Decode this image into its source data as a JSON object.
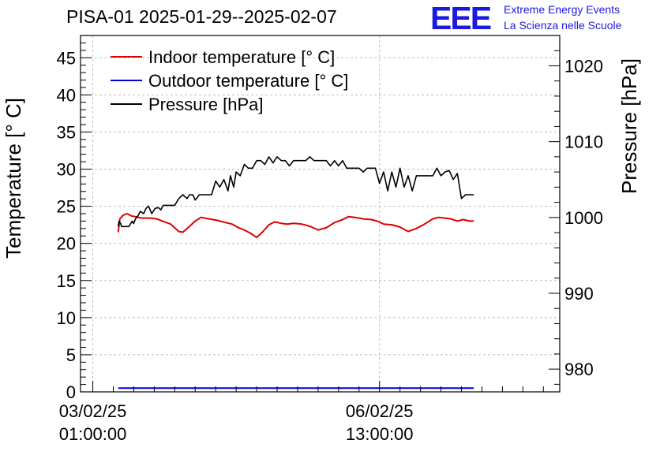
{
  "chart_data": {
    "type": "line",
    "title": "PISA-01 2025-01-29--2025-02-07",
    "ylabel": "Temperature [° C]",
    "y2label": "Pressure [hPa]",
    "ylim": [
      0,
      48
    ],
    "y2lim": [
      977,
      1024
    ],
    "xlim": [
      -0.15,
      5.7
    ],
    "x_ticks": [
      {
        "x": 0,
        "label": [
          "03/02/25",
          "01:00:00"
        ]
      },
      {
        "x": 3.5,
        "label": [
          "06/02/25",
          "13:00:00"
        ]
      }
    ],
    "y_ticks": [
      0,
      5,
      10,
      15,
      20,
      25,
      30,
      35,
      40,
      45
    ],
    "y2_ticks": [
      980,
      990,
      1000,
      1010,
      1020
    ],
    "grid": true,
    "legend": "top-left",
    "series": [
      {
        "name": "Indoor temperature [° C]",
        "color": "#dd0000",
        "axis": "left",
        "x": [
          0.31,
          0.33,
          0.37,
          0.42,
          0.47,
          0.52,
          0.6,
          0.7,
          0.78,
          0.85,
          0.95,
          1.05,
          1.1,
          1.17,
          1.25,
          1.32,
          1.42,
          1.52,
          1.62,
          1.7,
          1.78,
          1.85,
          1.92,
          2.0,
          2.07,
          2.15,
          2.22,
          2.3,
          2.37,
          2.45,
          2.55,
          2.65,
          2.75,
          2.85,
          2.95,
          3.05,
          3.12,
          3.2,
          3.3,
          3.4,
          3.47,
          3.55,
          3.65,
          3.75,
          3.85,
          3.95,
          4.05,
          4.15,
          4.22,
          4.3,
          4.37,
          4.45,
          4.52,
          4.6,
          4.65
        ],
        "y": [
          21.5,
          23.3,
          23.8,
          24.0,
          23.7,
          23.6,
          23.4,
          23.4,
          23.3,
          23.0,
          22.6,
          21.6,
          21.5,
          22.2,
          23.0,
          23.5,
          23.3,
          23.1,
          22.8,
          22.6,
          22.1,
          21.8,
          21.4,
          20.8,
          21.5,
          22.5,
          22.9,
          22.7,
          22.6,
          22.7,
          22.6,
          22.3,
          21.8,
          22.1,
          22.8,
          23.2,
          23.6,
          23.5,
          23.3,
          23.2,
          23.0,
          22.6,
          22.5,
          22.2,
          21.6,
          22.0,
          22.6,
          23.3,
          23.5,
          23.4,
          23.3,
          23.0,
          23.2,
          23.0,
          23.0
        ]
      },
      {
        "name": "Outdoor temperature [° C]",
        "color": "#0000dd",
        "axis": "left",
        "x": [
          0.31,
          4.65
        ],
        "y": [
          0.5,
          0.5
        ]
      },
      {
        "name": "Pressure [hPa]",
        "color": "#000000",
        "axis": "right",
        "x": [
          0.31,
          0.32,
          0.34,
          0.35,
          0.44,
          0.48,
          0.5,
          0.52,
          0.55,
          0.58,
          0.62,
          0.65,
          0.68,
          0.72,
          0.76,
          0.8,
          0.83,
          0.86,
          0.9,
          0.95,
          1.0,
          1.05,
          1.1,
          1.15,
          1.18,
          1.22,
          1.25,
          1.3,
          1.35,
          1.4,
          1.45,
          1.5,
          1.55,
          1.6,
          1.65,
          1.68,
          1.72,
          1.75,
          1.8,
          1.85,
          1.9,
          1.95,
          2.0,
          2.05,
          2.1,
          2.15,
          2.2,
          2.25,
          2.3,
          2.35,
          2.4,
          2.45,
          2.5,
          2.55,
          2.6,
          2.65,
          2.7,
          2.75,
          2.8,
          2.85,
          2.9,
          2.95,
          3.0,
          3.05,
          3.1,
          3.15,
          3.2,
          3.25,
          3.3,
          3.35,
          3.4,
          3.45,
          3.5,
          3.55,
          3.6,
          3.65,
          3.7,
          3.75,
          3.8,
          3.85,
          3.9,
          3.95,
          4.0,
          4.05,
          4.1,
          4.15,
          4.2,
          4.25,
          4.3,
          4.35,
          4.4,
          4.45,
          4.5,
          4.55,
          4.6,
          4.65
        ],
        "y": [
          998.8,
          999.5,
          999.2,
          998.8,
          998.8,
          999.5,
          999.2,
          999.8,
          1000.2,
          1000.8,
          1000.5,
          1001.2,
          1001.5,
          1000.5,
          1001.2,
          1001.3,
          1001.0,
          1001.6,
          1001.6,
          1001.6,
          1001.6,
          1002.5,
          1003.0,
          1002.5,
          1003.0,
          1003.0,
          1002.3,
          1003.0,
          1003.0,
          1003.0,
          1003.0,
          1004.8,
          1004.0,
          1005.0,
          1003.5,
          1005.5,
          1004.0,
          1006.0,
          1005.5,
          1007.0,
          1006.5,
          1006.5,
          1007.5,
          1007.5,
          1007.0,
          1008.0,
          1007.2,
          1008.0,
          1007.5,
          1007.5,
          1006.8,
          1007.5,
          1007.5,
          1007.5,
          1007.5,
          1008.0,
          1007.5,
          1007.5,
          1007.5,
          1007.5,
          1006.8,
          1007.5,
          1006.8,
          1007.5,
          1006.5,
          1006.5,
          1006.5,
          1006.5,
          1006.0,
          1006.5,
          1006.5,
          1006.5,
          1004.5,
          1006.0,
          1003.5,
          1006.0,
          1004.0,
          1006.5,
          1004.0,
          1005.5,
          1003.5,
          1005.5,
          1005.5,
          1005.5,
          1005.5,
          1005.5,
          1006.5,
          1005.5,
          1006.0,
          1006.2,
          1005.0,
          1005.8,
          1002.5,
          1003.0,
          1003.0,
          1003.0
        ]
      }
    ]
  },
  "logo": {
    "text": "EEE",
    "line1": "Extreme Energy Events",
    "line2": "La Scienza nelle Scuole"
  }
}
